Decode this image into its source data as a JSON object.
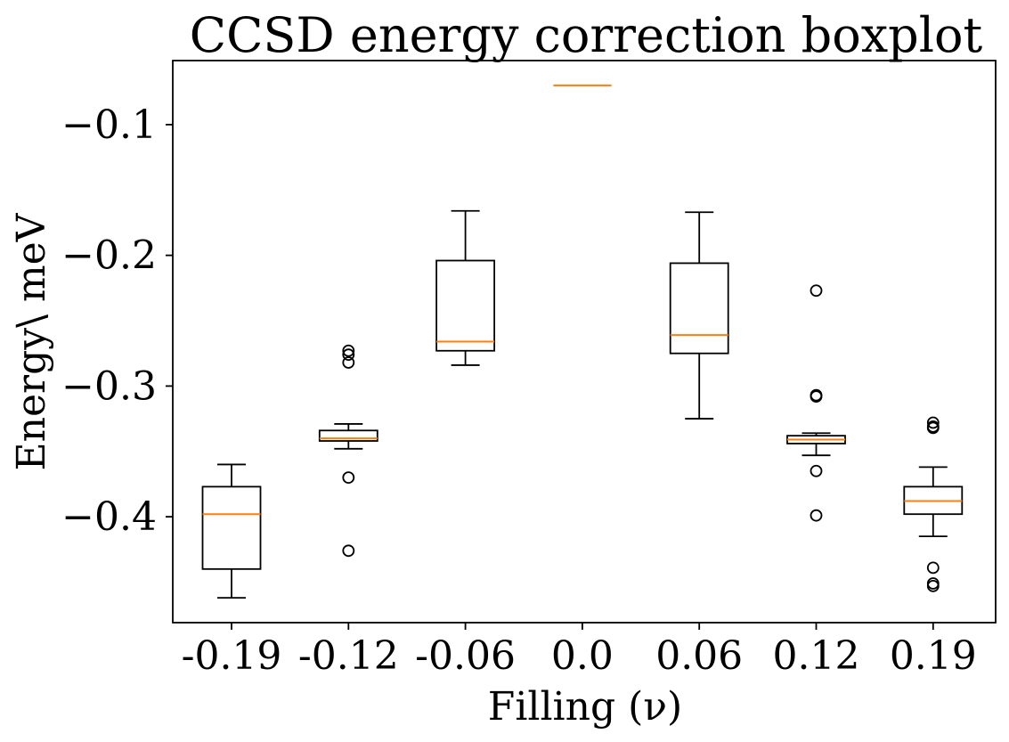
{
  "chart_data": {
    "type": "boxplot",
    "title": "CCSD energy correction boxplot",
    "xlabel": "Filling (ν)",
    "ylabel": "Energy\\ meV",
    "categories": [
      "-0.19",
      "-0.12",
      "-0.06",
      "0.0",
      "0.06",
      "0.12",
      "0.19"
    ],
    "yticks": [
      {
        "value": -0.1,
        "label": "−0.1"
      },
      {
        "value": -0.2,
        "label": "−0.2"
      },
      {
        "value": -0.3,
        "label": "−0.3"
      },
      {
        "value": -0.4,
        "label": "−0.4"
      }
    ],
    "ylim": [
      -0.481,
      -0.051
    ],
    "colors": {
      "box": "#000000",
      "median": "#ff7f0e",
      "outlier": "#000000"
    },
    "boxes": [
      {
        "category": "-0.19",
        "whisker_low": -0.462,
        "q1": -0.44,
        "median": -0.398,
        "q3": -0.377,
        "whisker_high": -0.36,
        "outliers": []
      },
      {
        "category": "-0.12",
        "whisker_low": -0.348,
        "q1": -0.342,
        "median": -0.34,
        "q3": -0.334,
        "whisker_high": -0.329,
        "outliers": [
          -0.273,
          -0.276,
          -0.282,
          -0.37,
          -0.426
        ]
      },
      {
        "category": "-0.06",
        "whisker_low": -0.284,
        "q1": -0.273,
        "median": -0.266,
        "q3": -0.204,
        "whisker_high": -0.166,
        "outliers": []
      },
      {
        "category": "0.0",
        "whisker_low": -0.07,
        "q1": -0.07,
        "median": -0.07,
        "q3": -0.07,
        "whisker_high": -0.07,
        "outliers": []
      },
      {
        "category": "0.06",
        "whisker_low": -0.325,
        "q1": -0.275,
        "median": -0.261,
        "q3": -0.206,
        "whisker_high": -0.167,
        "outliers": []
      },
      {
        "category": "0.12",
        "whisker_low": -0.353,
        "q1": -0.344,
        "median": -0.341,
        "q3": -0.338,
        "whisker_high": -0.336,
        "outliers": [
          -0.227,
          -0.307,
          -0.308,
          -0.365,
          -0.399
        ]
      },
      {
        "category": "0.19",
        "whisker_low": -0.415,
        "q1": -0.398,
        "median": -0.388,
        "q3": -0.377,
        "whisker_high": -0.362,
        "outliers": [
          -0.328,
          -0.331,
          -0.332,
          -0.439,
          -0.451,
          -0.453
        ]
      }
    ]
  }
}
